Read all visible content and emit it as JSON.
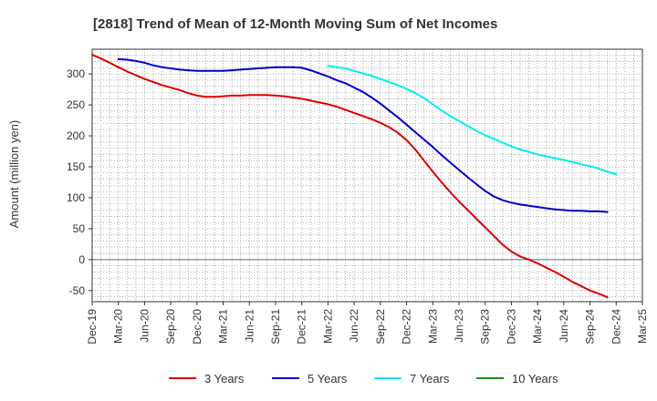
{
  "chart_data": {
    "type": "line",
    "title": "[2818]  Trend of Mean of 12-Month Moving Sum of Net Incomes",
    "xlabel": "",
    "ylabel": "Amount (million yen)",
    "ylim": [
      -68,
      340
    ],
    "yticks": [
      -50,
      0,
      50,
      100,
      150,
      200,
      250,
      300
    ],
    "grid": true,
    "legend_position": "bottom",
    "x_ticks": [
      "Dec-19",
      "Mar-20",
      "Jun-20",
      "Sep-20",
      "Dec-20",
      "Mar-21",
      "Jun-21",
      "Sep-21",
      "Dec-21",
      "Mar-22",
      "Jun-22",
      "Sep-22",
      "Dec-22",
      "Mar-23",
      "Jun-23",
      "Sep-23",
      "Dec-23",
      "Mar-24",
      "Jun-24",
      "Sep-24",
      "Dec-24",
      "Mar-25"
    ],
    "series": [
      {
        "name": "3 Years",
        "color": "#dd0000",
        "start_index": 0,
        "values": [
          331,
          325,
          318,
          311,
          304,
          298,
          292,
          287,
          282,
          278,
          274,
          269,
          265,
          263,
          263,
          264,
          265,
          265,
          266,
          266,
          266,
          265,
          264,
          262,
          260,
          257,
          254,
          251,
          247,
          242,
          237,
          232,
          227,
          221,
          214,
          205,
          193,
          178,
          160,
          142,
          125,
          109,
          94,
          80,
          66,
          52,
          38,
          24,
          13,
          5,
          0,
          -6,
          -13,
          -20,
          -28,
          -36,
          -43,
          -50,
          -55,
          -61
        ]
      },
      {
        "name": "5 Years",
        "color": "#0000cc",
        "start_index": 3,
        "values": [
          324,
          323,
          321,
          318,
          314,
          311,
          309,
          307,
          306,
          305,
          305,
          305,
          305,
          306,
          307,
          308,
          309,
          310,
          311,
          311,
          311,
          310,
          306,
          301,
          296,
          290,
          285,
          278,
          271,
          262,
          252,
          241,
          230,
          218,
          206,
          194,
          182,
          169,
          157,
          145,
          133,
          122,
          111,
          102,
          96,
          92,
          89,
          87,
          85,
          83,
          81,
          80,
          79,
          79,
          78,
          78,
          77
        ]
      },
      {
        "name": "7 Years",
        "color": "#00eeee",
        "start_index": 27,
        "values": [
          313,
          311,
          309,
          305,
          301,
          297,
          292,
          287,
          282,
          276,
          269,
          261,
          251,
          241,
          232,
          224,
          216,
          208,
          201,
          195,
          189,
          183,
          178,
          174,
          170,
          167,
          164,
          161,
          158,
          154,
          151,
          147,
          142,
          138
        ]
      },
      {
        "name": "10 Years",
        "color": "#228b22",
        "start_index": 0,
        "values": []
      }
    ]
  }
}
